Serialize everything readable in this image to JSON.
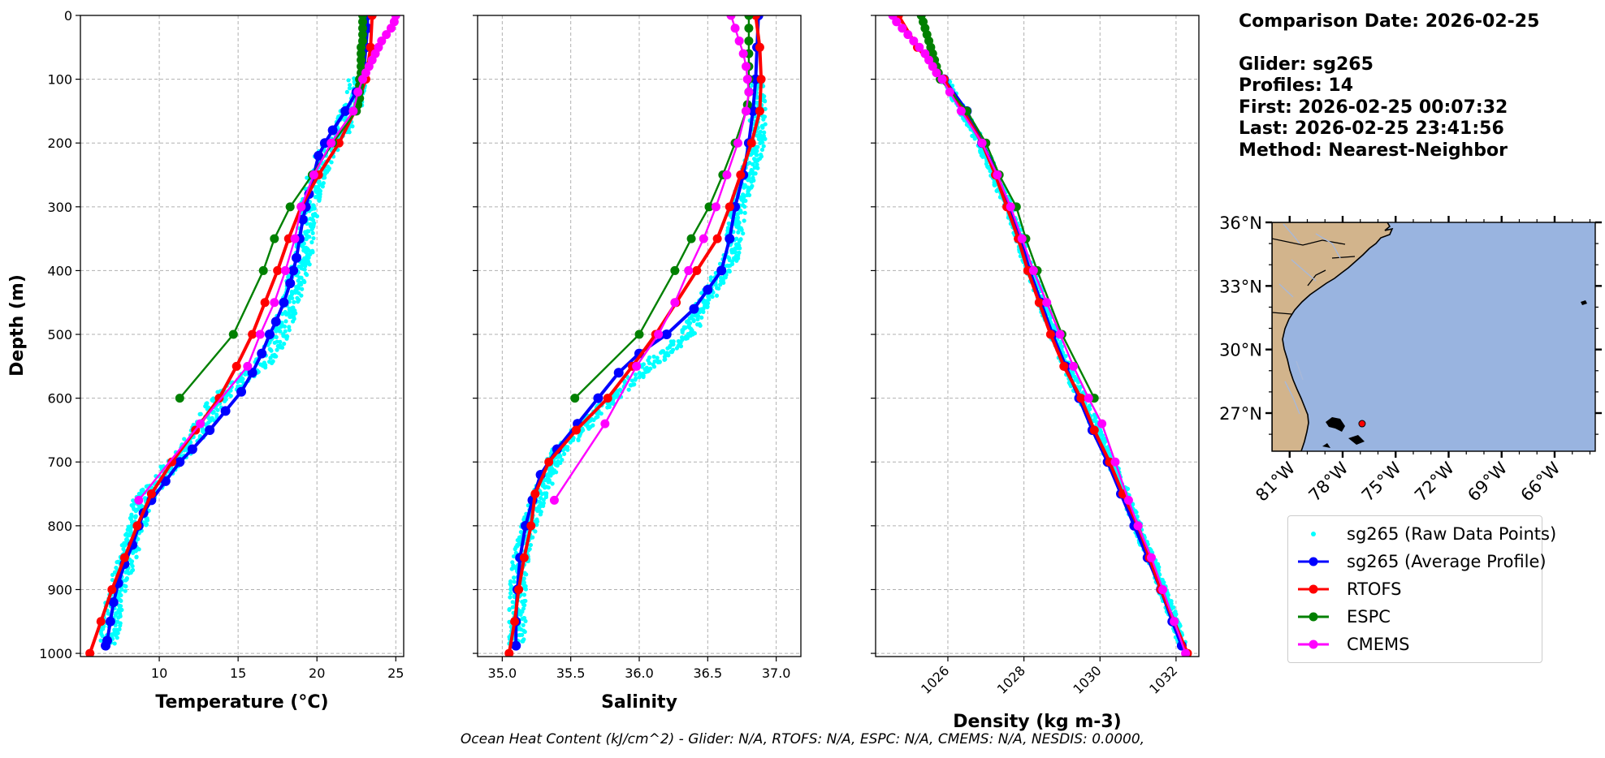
{
  "info": {
    "comparison_date": "Comparison Date: 2026-02-25",
    "glider": "Glider: sg265",
    "profiles": "Profiles: 14",
    "first": "First: 2026-02-25 00:07:32",
    "last": "Last: 2026-02-25 23:41:56",
    "method": "Method: Nearest-Neighbor"
  },
  "footer": "Ocean Heat Content (kJ/cm^2) - Glider: N/A,  RTOFS: N/A,  ESPC: N/A,  CMEMS: N/A,  NESDIS: 0.0000,",
  "colors": {
    "raw": "#00ffff",
    "glider": "#0000ff",
    "rtofs": "#ff0000",
    "espc": "#008000",
    "cmems": "#ff00ff",
    "land": "#d2b48c",
    "ocean": "#99b4e0",
    "rivers": "#a8b8d8"
  },
  "legend": [
    {
      "key": "raw",
      "label": "sg265 (Raw Data Points)",
      "style": "dots",
      "color": "#00ffff"
    },
    {
      "key": "glider",
      "label": "sg265 (Average Profile)",
      "style": "line-marker",
      "color": "#0000ff"
    },
    {
      "key": "rtofs",
      "label": "RTOFS",
      "style": "line-marker",
      "color": "#ff0000"
    },
    {
      "key": "espc",
      "label": "ESPC",
      "style": "line-marker",
      "color": "#008000"
    },
    {
      "key": "cmems",
      "label": "CMEMS",
      "style": "line-marker",
      "color": "#ff00ff"
    }
  ],
  "chart_data": [
    {
      "type": "line",
      "xlabel": "Temperature (°C)",
      "ylabel": "Depth (m)",
      "xlim": [
        5.0,
        25.5
      ],
      "ylim": [
        1005,
        0
      ],
      "xticks": [
        10,
        15,
        20,
        25
      ],
      "yticks": [
        0,
        100,
        200,
        300,
        400,
        500,
        600,
        700,
        800,
        900,
        1000
      ],
      "grid": true,
      "series": [
        {
          "key": "raw",
          "style": "scatter-band",
          "depth": [
            100,
            140,
            180,
            220,
            260,
            300,
            340,
            380,
            420,
            460,
            500,
            540,
            570,
            600,
            640,
            680,
            720,
            760,
            800,
            840,
            880,
            920,
            960,
            985
          ],
          "x": [
            22.6,
            22.3,
            21.5,
            20.5,
            19.9,
            19.5,
            19.3,
            19.1,
            18.6,
            18.2,
            17.7,
            16.8,
            15.3,
            13.8,
            12.8,
            11.7,
            10.3,
            8.9,
            8.6,
            8.1,
            7.6,
            7.1,
            6.9,
            6.7
          ],
          "spread": 0.6
        },
        {
          "key": "glider",
          "depth": [
            0,
            20,
            50,
            80,
            100,
            120,
            150,
            180,
            200,
            220,
            250,
            280,
            300,
            320,
            350,
            380,
            400,
            420,
            450,
            480,
            500,
            530,
            560,
            590,
            620,
            650,
            680,
            700,
            730,
            760,
            780,
            800,
            830,
            860,
            890,
            920,
            950,
            980,
            988
          ],
          "x": [
            23.2,
            23.2,
            23.1,
            23.0,
            22.9,
            22.5,
            21.8,
            21.0,
            20.5,
            20.1,
            19.8,
            19.5,
            19.3,
            19.1,
            18.9,
            18.7,
            18.5,
            18.3,
            17.9,
            17.4,
            17.0,
            16.5,
            15.9,
            15.2,
            14.2,
            13.2,
            12.1,
            11.3,
            10.4,
            9.5,
            9.0,
            8.7,
            8.3,
            7.8,
            7.4,
            7.1,
            6.9,
            6.7,
            6.6
          ]
        },
        {
          "key": "rtofs",
          "depth": [
            0,
            50,
            100,
            150,
            200,
            250,
            300,
            350,
            400,
            450,
            500,
            550,
            600,
            650,
            700,
            750,
            800,
            850,
            900,
            950,
            1000
          ],
          "x": [
            23.5,
            23.4,
            23.1,
            22.4,
            21.4,
            20.1,
            19.0,
            18.2,
            17.5,
            16.7,
            15.9,
            14.9,
            13.8,
            12.3,
            10.8,
            9.5,
            8.6,
            7.8,
            7.0,
            6.3,
            5.6
          ]
        },
        {
          "key": "espc",
          "depth": [
            0,
            10,
            20,
            30,
            40,
            50,
            60,
            70,
            80,
            90,
            100,
            110,
            120,
            130,
            140,
            150,
            200,
            250,
            300,
            350,
            400,
            500,
            600
          ],
          "x": [
            22.9,
            22.9,
            22.9,
            22.9,
            22.9,
            22.8,
            22.8,
            22.8,
            22.8,
            22.8,
            22.7,
            22.7,
            22.7,
            22.7,
            22.6,
            22.5,
            21.0,
            19.7,
            18.3,
            17.3,
            16.6,
            14.7,
            11.3
          ]
        },
        {
          "key": "cmems",
          "depth": [
            0,
            10,
            20,
            30,
            40,
            50,
            60,
            70,
            80,
            90,
            100,
            120,
            150,
            200,
            250,
            300,
            350,
            400,
            450,
            500,
            550,
            640,
            760
          ],
          "x": [
            25.0,
            24.9,
            24.7,
            24.4,
            24.1,
            23.9,
            23.7,
            23.5,
            23.3,
            23.1,
            22.9,
            22.6,
            22.3,
            20.9,
            19.8,
            19.0,
            18.6,
            18.0,
            17.3,
            16.4,
            15.6,
            12.6,
            8.7
          ]
        }
      ]
    },
    {
      "type": "line",
      "xlabel": "Salinity",
      "xlim": [
        34.82,
        37.18
      ],
      "ylim": [
        1005,
        0
      ],
      "xticks": [
        35.0,
        35.5,
        36.0,
        36.5,
        37.0
      ],
      "xticklabels": [
        "35.0",
        "35.5",
        "36.0",
        "36.5",
        "37.0"
      ],
      "grid": true,
      "series": [
        {
          "key": "raw",
          "style": "scatter-band",
          "depth": [
            100,
            140,
            180,
            220,
            260,
            300,
            340,
            380,
            420,
            460,
            500,
            540,
            570,
            600,
            640,
            680,
            720,
            760,
            800,
            840,
            880,
            920,
            960,
            985
          ],
          "x": [
            36.86,
            36.86,
            36.87,
            36.84,
            36.78,
            36.72,
            36.7,
            36.67,
            36.55,
            36.46,
            36.35,
            36.12,
            35.95,
            35.8,
            35.62,
            35.42,
            35.33,
            35.26,
            35.2,
            35.14,
            35.12,
            35.11,
            35.11,
            35.1
          ],
          "spread": 0.06
        },
        {
          "key": "glider",
          "depth": [
            0,
            50,
            100,
            150,
            200,
            250,
            300,
            350,
            400,
            430,
            460,
            500,
            530,
            560,
            600,
            640,
            680,
            720,
            760,
            800,
            850,
            900,
            950,
            988
          ],
          "x": [
            36.87,
            36.86,
            36.85,
            36.83,
            36.8,
            36.76,
            36.7,
            36.66,
            36.6,
            36.5,
            36.4,
            36.2,
            36.0,
            35.85,
            35.7,
            35.55,
            35.4,
            35.28,
            35.22,
            35.17,
            35.13,
            35.11,
            35.1,
            35.1
          ]
        },
        {
          "key": "rtofs",
          "depth": [
            0,
            50,
            100,
            150,
            200,
            250,
            300,
            350,
            400,
            450,
            500,
            550,
            600,
            650,
            700,
            750,
            800,
            850,
            900,
            950,
            1000
          ],
          "x": [
            36.85,
            36.88,
            36.89,
            36.88,
            36.82,
            36.74,
            36.66,
            36.57,
            36.42,
            36.27,
            36.12,
            35.95,
            35.77,
            35.54,
            35.34,
            35.24,
            35.21,
            35.16,
            35.12,
            35.09,
            35.05
          ]
        },
        {
          "key": "espc",
          "depth": [
            0,
            20,
            40,
            60,
            80,
            100,
            120,
            140,
            150,
            200,
            250,
            300,
            350,
            400,
            500,
            600
          ],
          "x": [
            36.8,
            36.8,
            36.8,
            36.8,
            36.8,
            36.8,
            36.8,
            36.79,
            36.78,
            36.7,
            36.61,
            36.51,
            36.38,
            36.26,
            36.0,
            35.53
          ]
        },
        {
          "key": "cmems",
          "depth": [
            0,
            20,
            40,
            60,
            80,
            100,
            120,
            150,
            200,
            250,
            300,
            350,
            400,
            450,
            500,
            550,
            640,
            760
          ],
          "x": [
            36.67,
            36.7,
            36.73,
            36.76,
            36.78,
            36.79,
            36.8,
            36.78,
            36.72,
            36.64,
            36.56,
            36.47,
            36.36,
            36.26,
            36.14,
            35.98,
            35.75,
            35.38
          ]
        }
      ]
    },
    {
      "type": "line",
      "xlabel": "Density (kg m-3)",
      "xlim": [
        1024.1,
        1032.6
      ],
      "ylim": [
        1005,
        0
      ],
      "xticks": [
        1026,
        1028,
        1030,
        1032
      ],
      "xticklabels": [
        "1026",
        "1028",
        "1030",
        "1032"
      ],
      "grid": true,
      "series": [
        {
          "key": "raw",
          "style": "scatter-band",
          "depth": [
            100,
            140,
            180,
            220,
            260,
            300,
            340,
            380,
            420,
            460,
            500,
            540,
            580,
            620,
            660,
            700,
            740,
            780,
            820,
            860,
            900,
            940,
            985
          ],
          "x": [
            1025.9,
            1026.3,
            1026.7,
            1027.0,
            1027.3,
            1027.6,
            1027.85,
            1028.05,
            1028.3,
            1028.55,
            1028.8,
            1029.05,
            1029.35,
            1029.7,
            1030.0,
            1030.3,
            1030.6,
            1030.85,
            1031.1,
            1031.4,
            1031.65,
            1031.9,
            1032.15
          ],
          "spread": 0.12
        },
        {
          "key": "glider",
          "depth": [
            100,
            150,
            200,
            250,
            300,
            350,
            400,
            450,
            500,
            550,
            600,
            650,
            700,
            750,
            800,
            850,
            900,
            950,
            988
          ],
          "x": [
            1025.9,
            1026.5,
            1026.9,
            1027.3,
            1027.6,
            1027.9,
            1028.15,
            1028.45,
            1028.75,
            1029.1,
            1029.45,
            1029.8,
            1030.2,
            1030.55,
            1030.9,
            1031.25,
            1031.6,
            1031.9,
            1032.15
          ]
        },
        {
          "key": "rtofs",
          "depth": [
            0,
            50,
            100,
            150,
            200,
            250,
            300,
            350,
            400,
            450,
            500,
            550,
            600,
            650,
            700,
            750,
            800,
            850,
            900,
            950,
            1000
          ],
          "x": [
            1024.7,
            1025.2,
            1025.9,
            1026.4,
            1026.9,
            1027.25,
            1027.55,
            1027.85,
            1028.1,
            1028.4,
            1028.7,
            1029.05,
            1029.5,
            1029.85,
            1030.25,
            1030.6,
            1031.0,
            1031.3,
            1031.6,
            1031.95,
            1032.3
          ]
        },
        {
          "key": "espc",
          "depth": [
            0,
            10,
            20,
            30,
            40,
            50,
            60,
            70,
            80,
            90,
            100,
            150,
            200,
            250,
            300,
            350,
            400,
            500,
            600
          ],
          "x": [
            1025.3,
            1025.35,
            1025.4,
            1025.45,
            1025.5,
            1025.55,
            1025.6,
            1025.65,
            1025.7,
            1025.75,
            1025.8,
            1026.5,
            1027.0,
            1027.35,
            1027.8,
            1028.05,
            1028.35,
            1029.0,
            1029.85
          ]
        },
        {
          "key": "cmems",
          "depth": [
            0,
            10,
            20,
            30,
            40,
            50,
            60,
            70,
            80,
            90,
            100,
            120,
            150,
            200,
            250,
            300,
            350,
            400,
            450,
            500,
            550,
            600,
            640,
            700,
            760,
            800,
            850,
            900,
            950,
            1000
          ],
          "x": [
            1024.55,
            1024.65,
            1024.8,
            1024.95,
            1025.1,
            1025.25,
            1025.4,
            1025.5,
            1025.6,
            1025.7,
            1025.85,
            1026.05,
            1026.35,
            1026.9,
            1027.3,
            1027.65,
            1027.95,
            1028.25,
            1028.6,
            1028.95,
            1029.3,
            1029.7,
            1030.05,
            1030.4,
            1030.75,
            1031.0,
            1031.35,
            1031.65,
            1031.95,
            1032.25
          ]
        }
      ]
    }
  ],
  "map": {
    "lon_range": [
      -82.0,
      -63.7
    ],
    "lat_range": [
      25.2,
      36.0
    ],
    "lat_ticks": [
      36,
      33,
      30,
      27
    ],
    "lat_labels": [
      "36°N",
      "33°N",
      "30°N",
      "27°N"
    ],
    "lon_ticks": [
      -81,
      -78,
      -75,
      -72,
      -69,
      -66
    ],
    "lon_labels": [
      "81°W",
      "78°W",
      "75°W",
      "72°W",
      "69°W",
      "66°W"
    ],
    "glider_location": {
      "lon": -76.9,
      "lat": 26.5
    }
  }
}
